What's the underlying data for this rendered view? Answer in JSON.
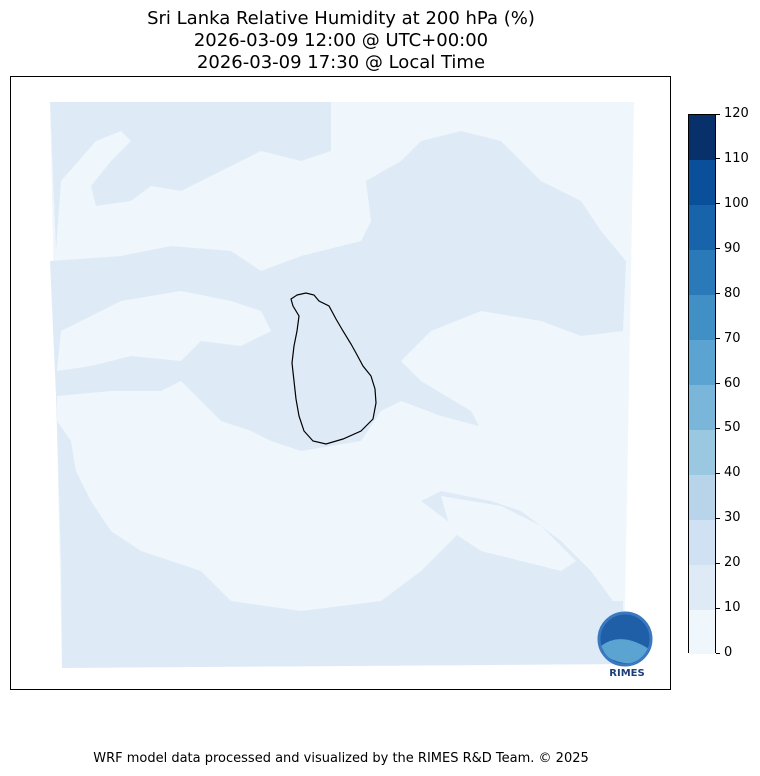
{
  "title": {
    "line1": "Sri Lanka Relative Humidity at 200 hPa (%)",
    "line2": "2026-03-09 12:00 @ UTC+00:00",
    "line3": "2026-03-09 17:30 @ Local Time"
  },
  "chart_data": {
    "type": "heatmap",
    "description_kind": "filled contour map",
    "region": "Sri Lanka",
    "variable": "Relative Humidity at 200 hPa (%)",
    "dominant_range": [
      10,
      20
    ],
    "secondary_range": [
      0,
      10
    ],
    "colorbar": {
      "levels": [
        0,
        10,
        20,
        30,
        40,
        50,
        60,
        70,
        80,
        90,
        100,
        110,
        120
      ],
      "tick_labels": [
        "0",
        "10",
        "20",
        "30",
        "40",
        "50",
        "60",
        "70",
        "80",
        "90",
        "100",
        "110",
        "120"
      ],
      "colors": [
        "#eff6fc",
        "#deebf7",
        "#cfe1f2",
        "#b7d4ea",
        "#9ac8e0",
        "#7ab6d9",
        "#5ba3d0",
        "#4090c5",
        "#2a7ab9",
        "#1764ab",
        "#0a4f99",
        "#08306b"
      ],
      "orientation": "vertical",
      "placement": "right"
    }
  },
  "logo": {
    "text": "RIMES"
  },
  "footer": "WRF model data processed and visualized by the RIMES R&D Team. © 2025"
}
